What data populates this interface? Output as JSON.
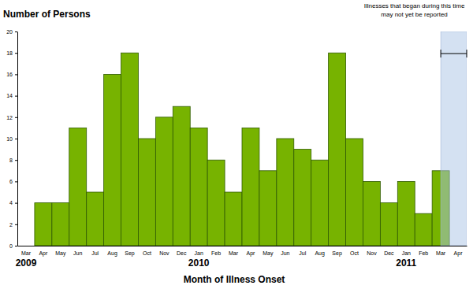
{
  "chart_data": {
    "type": "bar",
    "y_label": "Number of Persons",
    "x_label": "Month of Illness Onset",
    "categories": [
      "Mar",
      "Apr",
      "May",
      "Jun",
      "Jul",
      "Aug",
      "Sep",
      "Oct",
      "Nov",
      "Dec",
      "Jan",
      "Feb",
      "Mar",
      "Apr",
      "May",
      "Jun",
      "Jul",
      "Aug",
      "Sep",
      "Oct",
      "Nov",
      "Dec",
      "Jan",
      "Feb",
      "Mar",
      "Apr"
    ],
    "values": [
      0,
      4,
      4,
      11,
      5,
      16,
      18,
      10,
      12,
      13,
      11,
      8,
      5,
      11,
      7,
      10,
      9,
      8,
      18,
      10,
      6,
      4,
      6,
      3,
      7,
      0
    ],
    "color": "#77b300",
    "ylim": [
      0,
      20
    ],
    "yticks": [
      0,
      2,
      4,
      6,
      8,
      10,
      12,
      14,
      16,
      18,
      20
    ],
    "group_labels": [
      {
        "text": "2009",
        "index": 0
      },
      {
        "text": "2010",
        "index": 10
      },
      {
        "text": "2011",
        "index": 22
      }
    ],
    "annotations": [
      {
        "text": [
          "Illnesses that began during this time",
          "may not yet be reported"
        ],
        "from": 24,
        "to": 25
      }
    ]
  }
}
